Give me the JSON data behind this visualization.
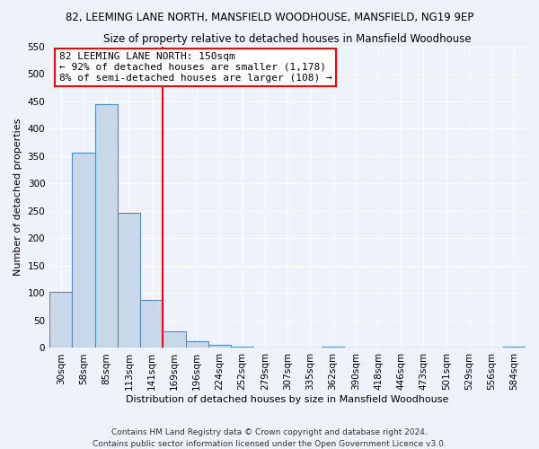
{
  "title": "82, LEEMING LANE NORTH, MANSFIELD WOODHOUSE, MANSFIELD, NG19 9EP",
  "subtitle": "Size of property relative to detached houses in Mansfield Woodhouse",
  "xlabel": "Distribution of detached houses by size in Mansfield Woodhouse",
  "ylabel": "Number of detached properties",
  "bin_labels": [
    "30sqm",
    "58sqm",
    "85sqm",
    "113sqm",
    "141sqm",
    "169sqm",
    "196sqm",
    "224sqm",
    "252sqm",
    "279sqm",
    "307sqm",
    "335sqm",
    "362sqm",
    "390sqm",
    "418sqm",
    "446sqm",
    "473sqm",
    "501sqm",
    "529sqm",
    "556sqm",
    "584sqm"
  ],
  "bar_values": [
    102,
    356,
    445,
    246,
    88,
    31,
    13,
    6,
    2,
    0,
    0,
    0,
    2,
    0,
    0,
    0,
    0,
    0,
    0,
    0,
    2
  ],
  "bar_color": "#c8d8e8",
  "bar_edgecolor": "#5588bb",
  "ylim": [
    0,
    550
  ],
  "yticks": [
    0,
    50,
    100,
    150,
    200,
    250,
    300,
    350,
    400,
    450,
    500,
    550
  ],
  "vline_x": 4.5,
  "vline_color": "red",
  "annotation_title": "82 LEEMING LANE NORTH: 150sqm",
  "annotation_line1": "← 92% of detached houses are smaller (1,178)",
  "annotation_line2": "8% of semi-detached houses are larger (108) →",
  "annotation_box_color": "white",
  "annotation_box_edgecolor": "red",
  "footer1": "Contains HM Land Registry data © Crown copyright and database right 2024.",
  "footer2": "Contains public sector information licensed under the Open Government Licence v3.0.",
  "background_color": "#eef2fa",
  "grid_color": "white"
}
